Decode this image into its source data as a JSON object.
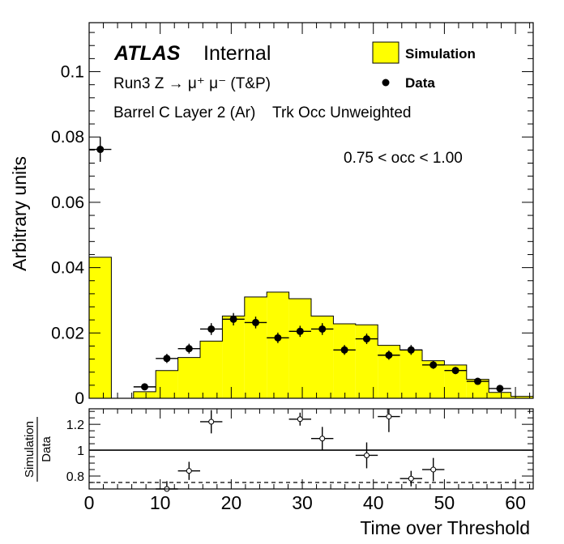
{
  "chart_data": [
    {
      "type": "histogram",
      "ylabel": "Arbitrary units",
      "xlim": [
        0,
        62.5
      ],
      "ylim": [
        0,
        0.115
      ],
      "yticks": [
        "0",
        "0.02",
        "0.04",
        "0.06",
        "0.08",
        "0.1"
      ],
      "brand": "ATLAS",
      "brand_sub": "Internal",
      "lines": [
        "Run3 Z → μ⁺ μ⁻ (T&P)",
        "Barrel C Layer 2 (Ar)    Trk Occ Unweighted"
      ],
      "annotation": "0.75 < occ < 1.00",
      "legend": {
        "position": "top-right",
        "sim_label": "Simulation",
        "data_label": "Data"
      },
      "colors": {
        "simulation": "#ffff00",
        "data": "#000000"
      },
      "bin_width": 3.125,
      "simulation_bins": {
        "x": [
          1.5625,
          4.6875,
          7.8125,
          10.9375,
          14.0625,
          17.1875,
          20.3125,
          23.4375,
          26.5625,
          29.6875,
          32.8125,
          35.9375,
          39.0625,
          42.1875,
          45.3125,
          48.4375,
          51.5625,
          54.6875,
          57.8125,
          60.9375
        ],
        "values": [
          0.0432,
          0.0,
          0.002,
          0.0085,
          0.0125,
          0.0175,
          0.0252,
          0.031,
          0.0325,
          0.0305,
          0.0252,
          0.0228,
          0.0225,
          0.0162,
          0.0148,
          0.0115,
          0.0102,
          0.0058,
          0.0018,
          0.0006
        ]
      },
      "data_points": {
        "x": [
          1.5625,
          7.8125,
          10.9375,
          14.0625,
          17.1875,
          20.3125,
          23.4375,
          26.5625,
          29.6875,
          32.8125,
          35.9375,
          39.0625,
          42.1875,
          45.3125,
          48.4375,
          51.5625,
          54.6875,
          57.8125
        ],
        "values": [
          0.0762,
          0.0035,
          0.0122,
          0.0152,
          0.0212,
          0.0242,
          0.0232,
          0.0185,
          0.0205,
          0.0212,
          0.0148,
          0.0182,
          0.0132,
          0.0148,
          0.0102,
          0.0085,
          0.0052,
          0.003
        ],
        "errors": [
          0.0038,
          0.0007,
          0.0014,
          0.0015,
          0.0018,
          0.0019,
          0.0018,
          0.0016,
          0.0017,
          0.0018,
          0.0015,
          0.0016,
          0.0014,
          0.0015,
          0.0012,
          0.0011,
          0.0009,
          0.0007
        ]
      }
    },
    {
      "type": "scatter",
      "ylabel_top": "Simulation",
      "ylabel_bottom": "Data",
      "xlabel": "Time over Threshold",
      "xlim": [
        0,
        62.5
      ],
      "ylim": [
        0.7,
        1.32
      ],
      "yticks": [
        "0.8",
        "1",
        "1.2"
      ],
      "xticks": [
        "0",
        "10",
        "20",
        "30",
        "40",
        "50",
        "60"
      ],
      "reference_lines": {
        "solid": 1.0,
        "dashed": 0.75
      },
      "ratio_points": {
        "x": [
          10.9375,
          14.0625,
          17.1875,
          29.6875,
          32.8125,
          39.0625,
          42.1875,
          45.3125,
          48.4375
        ],
        "values": [
          0.7,
          0.84,
          1.22,
          1.24,
          1.09,
          0.96,
          1.26,
          0.78,
          0.85
        ],
        "errors": [
          0.06,
          0.07,
          0.09,
          0.05,
          0.09,
          0.1,
          0.12,
          0.06,
          0.09
        ]
      }
    }
  ]
}
